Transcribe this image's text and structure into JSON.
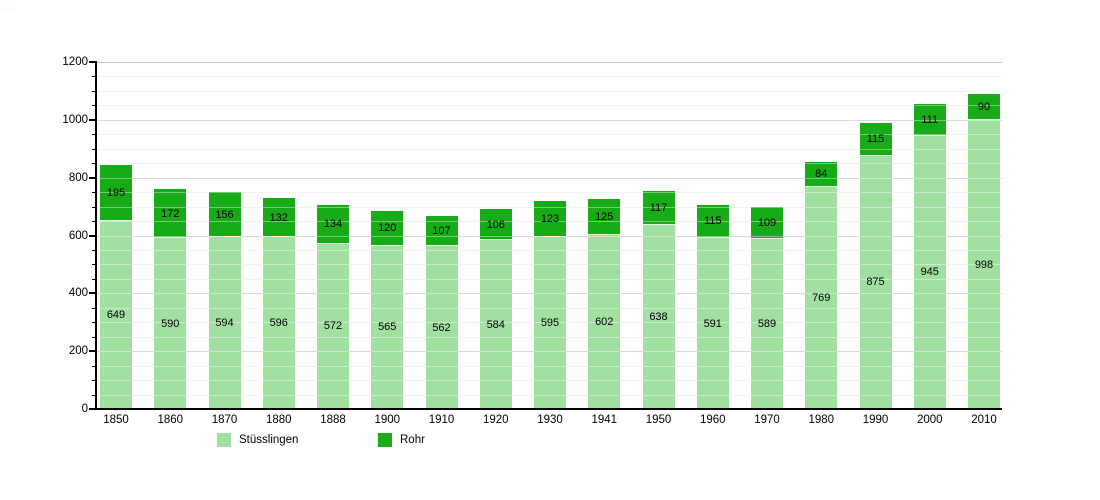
{
  "chart_data": {
    "type": "bar",
    "stacked": true,
    "title": "",
    "xlabel": "",
    "ylabel": "",
    "categories": [
      "1850",
      "1860",
      "1870",
      "1880",
      "1888",
      "1900",
      "1910",
      "1920",
      "1930",
      "1941",
      "1950",
      "1960",
      "1970",
      "1980",
      "1990",
      "2000",
      "2010"
    ],
    "series": [
      {
        "name": "Stüsslingen",
        "color": "#a2e0a2",
        "values": [
          649,
          590,
          594,
          596,
          572,
          565,
          562,
          584,
          595,
          602,
          638,
          591,
          589,
          769,
          875,
          945,
          998
        ]
      },
      {
        "name": "Rohr",
        "color": "#17ab17",
        "values": [
          195,
          172,
          156,
          132,
          134,
          120,
          107,
          106,
          123,
          125,
          117,
          115,
          109,
          84,
          115,
          111,
          90
        ]
      }
    ],
    "ylim": [
      0,
      1200
    ],
    "y_major_step": 200,
    "y_minor_step": 50,
    "y_tick_labels": [
      "0",
      "200",
      "400",
      "600",
      "800",
      "1000",
      "1200"
    ],
    "grid": true,
    "legend_position": "bottom",
    "value_labels_shown": true,
    "colors": {
      "axis": "#000000",
      "major_grid": "#c4c4c4",
      "minor_grid": "#ececec",
      "label_text": "#000000",
      "background": "#ffffff"
    }
  }
}
